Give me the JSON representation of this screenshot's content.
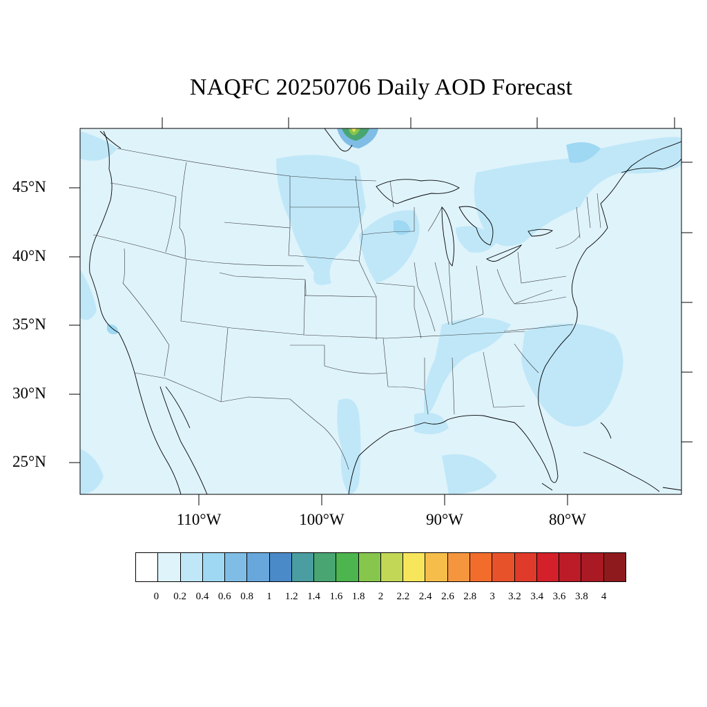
{
  "title": "NAQFC 20250706 Daily AOD Forecast",
  "map": {
    "projection": "lambert-conformal",
    "region": "CONUS",
    "background_color": "#dff3fb",
    "lat_labels": [
      "45°N",
      "40°N",
      "35°N",
      "30°N",
      "25°N"
    ],
    "lon_labels": [
      "110°W",
      "100°W",
      "90°W",
      "80°W"
    ],
    "features": [
      "coastlines",
      "state-borders",
      "country-borders",
      "great-lakes"
    ],
    "high_aod_regions": [
      {
        "area": "southern Canada near Manitoba border",
        "level": "1.2-2.4"
      },
      {
        "area": "Nebraska / South Dakota",
        "level": "0.2-0.4"
      },
      {
        "area": "Iowa / Wisconsin",
        "level": "0.2-0.4"
      },
      {
        "area": "Atlantic off Carolinas",
        "level": "0.2-0.4"
      },
      {
        "area": "south Texas",
        "level": "0.2-0.4"
      },
      {
        "area": "New England / Quebec",
        "level": "0.2-0.4"
      }
    ]
  },
  "colorbar": {
    "labels": [
      "0",
      "0.2",
      "0.4",
      "0.6",
      "0.8",
      "1",
      "1.2",
      "1.4",
      "1.6",
      "1.8",
      "2",
      "2.2",
      "2.4",
      "2.6",
      "2.8",
      "3",
      "3.2",
      "3.4",
      "3.6",
      "3.8",
      "4"
    ],
    "colors": [
      "#ffffff",
      "#dff3fb",
      "#bfe7f8",
      "#9ed8f3",
      "#80bde6",
      "#67a7dc",
      "#4b8ac8",
      "#4a9da0",
      "#49a572",
      "#4cb54d",
      "#87c64d",
      "#c3d757",
      "#f7e55b",
      "#f7bd4a",
      "#f5963e",
      "#f26d2c",
      "#e8522b",
      "#e03a2a",
      "#d3202a",
      "#bb1c27",
      "#a91a24",
      "#8f1a1e"
    ]
  }
}
